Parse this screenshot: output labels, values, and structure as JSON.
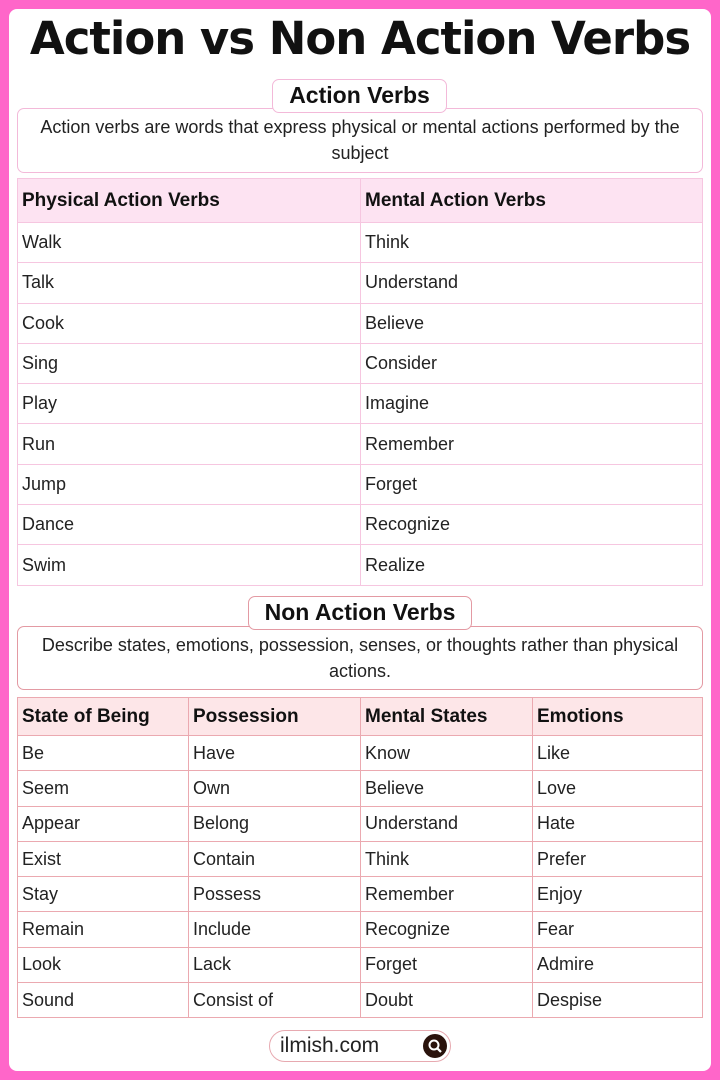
{
  "title": "Action vs Non Action Verbs",
  "colors": {
    "frame": "#ff66c9",
    "section1_header": "#fde3f2",
    "section2_header": "#fde6e8"
  },
  "action": {
    "label": "Action Verbs",
    "description": "Action verbs are words that express physical or mental actions performed by the subject",
    "headers": [
      "Physical Action Verbs",
      "Mental Action Verbs"
    ],
    "rows": [
      [
        "Walk",
        "Think"
      ],
      [
        "Talk",
        "Understand"
      ],
      [
        "Cook",
        "Believe"
      ],
      [
        "Sing",
        "Consider"
      ],
      [
        "Play",
        "Imagine"
      ],
      [
        "Run",
        "Remember"
      ],
      [
        "Jump",
        "Forget"
      ],
      [
        "Dance",
        "Recognize"
      ],
      [
        "Swim",
        "Realize"
      ]
    ]
  },
  "non_action": {
    "label": "Non Action Verbs",
    "description": "Describe states, emotions, possession, senses, or thoughts rather than physical actions.",
    "headers": [
      "State of Being",
      "Possession",
      "Mental States",
      "Emotions"
    ],
    "rows": [
      [
        "Be",
        "Have",
        "Know",
        "Like"
      ],
      [
        "Seem",
        "Own",
        "Believe",
        "Love"
      ],
      [
        "Appear",
        "Belong",
        "Understand",
        "Hate"
      ],
      [
        "Exist",
        "Contain",
        "Think",
        "Prefer"
      ],
      [
        "Stay",
        "Possess",
        "Remember",
        "Enjoy"
      ],
      [
        "Remain",
        "Include",
        "Recognize",
        "Fear"
      ],
      [
        "Look",
        "Lack",
        "Forget",
        "Admire"
      ],
      [
        "Sound",
        "Consist of",
        "Doubt",
        "Despise"
      ]
    ]
  },
  "footer": {
    "site": "ilmish.com",
    "icon": "search-icon"
  }
}
